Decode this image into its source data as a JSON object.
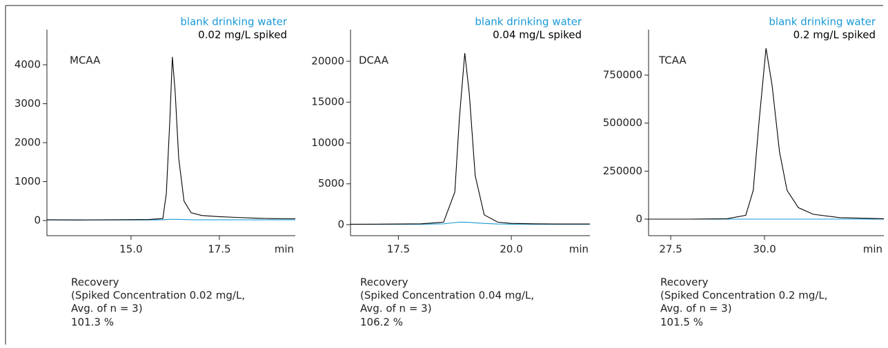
{
  "chart_data": [
    {
      "type": "line",
      "annotations": [
        "MCAA"
      ],
      "xlabel": "min",
      "x": [
        12.62,
        13.5,
        14.5,
        15.5,
        15.9,
        16.0,
        16.1,
        16.17,
        16.25,
        16.35,
        16.5,
        16.7,
        17.0,
        17.5,
        18.0,
        18.5,
        19.0,
        19.65
      ],
      "series": [
        {
          "name": "blank drinking water",
          "color": "#1a9ad6",
          "values": [
            15,
            15,
            15,
            15,
            20,
            25,
            30,
            30,
            30,
            28,
            25,
            20,
            20,
            20,
            20,
            20,
            20,
            20
          ]
        },
        {
          "name": "0.02 mg/L spiked",
          "color": "#000000",
          "values": [
            20,
            15,
            20,
            25,
            50,
            700,
            2600,
            4200,
            3300,
            1600,
            500,
            200,
            130,
            100,
            80,
            60,
            50,
            45
          ]
        }
      ],
      "xlim": [
        12.62,
        19.65
      ],
      "xticks": [
        {
          "value": 15,
          "label": "15.0"
        },
        {
          "value": 17.5,
          "label": "17.5"
        }
      ],
      "ylim": [
        -389,
        4903
      ],
      "yticks": [
        0,
        1000,
        2000,
        3000,
        4000
      ],
      "recovery": {
        "label": "Recovery",
        "condition": "(Spiked Concentration 0.02 mg/L,",
        "average": "Avg. of n = 3)",
        "value": "101.3 %"
      }
    },
    {
      "type": "line",
      "annotations": [
        "DCAA"
      ],
      "xlabel": "min",
      "x": [
        16.44,
        17.0,
        17.5,
        18.0,
        18.5,
        18.75,
        18.85,
        18.97,
        19.07,
        19.2,
        19.4,
        19.7,
        20.0,
        20.5,
        21.0,
        21.74
      ],
      "series": [
        {
          "name": "blank drinking water",
          "color": "#1a9ad6",
          "values": [
            40,
            40,
            50,
            50,
            100,
            250,
            300,
            300,
            280,
            220,
            150,
            80,
            60,
            50,
            50,
            50
          ]
        },
        {
          "name": "0.04 mg/L spiked",
          "color": "#000000",
          "values": [
            50,
            60,
            80,
            100,
            300,
            4000,
            13000,
            21000,
            16000,
            6000,
            1200,
            300,
            150,
            100,
            80,
            80
          ]
        }
      ],
      "xlim": [
        16.44,
        21.74
      ],
      "xticks": [
        {
          "value": 17.5,
          "label": "17.5"
        },
        {
          "value": 20,
          "label": "20.0"
        }
      ],
      "ylim": [
        -1350,
        23880
      ],
      "yticks": [
        0,
        5000,
        10000,
        15000,
        20000
      ],
      "recovery": {
        "label": "Recovery",
        "condition": "(Spiked Concentration 0.04 mg/L,",
        "average": "Avg. of n = 3)",
        "value": "106.2 %"
      }
    },
    {
      "type": "line",
      "annotations": [
        "TCAA"
      ],
      "xlabel": "min",
      "x": [
        26.91,
        28,
        29,
        29.5,
        29.7,
        29.85,
        30.04,
        30.2,
        30.4,
        30.6,
        30.9,
        31.3,
        32,
        33.18
      ],
      "series": [
        {
          "name": "blank drinking water",
          "color": "#1a9ad6",
          "values": [
            0,
            0,
            0,
            0,
            0,
            0,
            0,
            0,
            0,
            0,
            0,
            0,
            0,
            0
          ]
        },
        {
          "name": "0.2 mg/L spiked",
          "color": "#000000",
          "values": [
            0,
            0,
            2000,
            20000,
            150000,
            500000,
            890000,
            700000,
            350000,
            150000,
            60000,
            25000,
            8000,
            2000
          ]
        }
      ],
      "xlim": [
        26.91,
        33.18
      ],
      "xticks": [
        {
          "value": 27.5,
          "label": "27.5"
        },
        {
          "value": 30,
          "label": "30.0"
        }
      ],
      "ylim": [
        -86100,
        986800
      ],
      "yticks": [
        0,
        250000,
        500000,
        750000
      ],
      "recovery": {
        "label": "Recovery",
        "condition": "(Spiked Concentration 0.2 mg/L,",
        "average": "Avg. of n = 3)",
        "value": "101.5 %"
      }
    }
  ]
}
